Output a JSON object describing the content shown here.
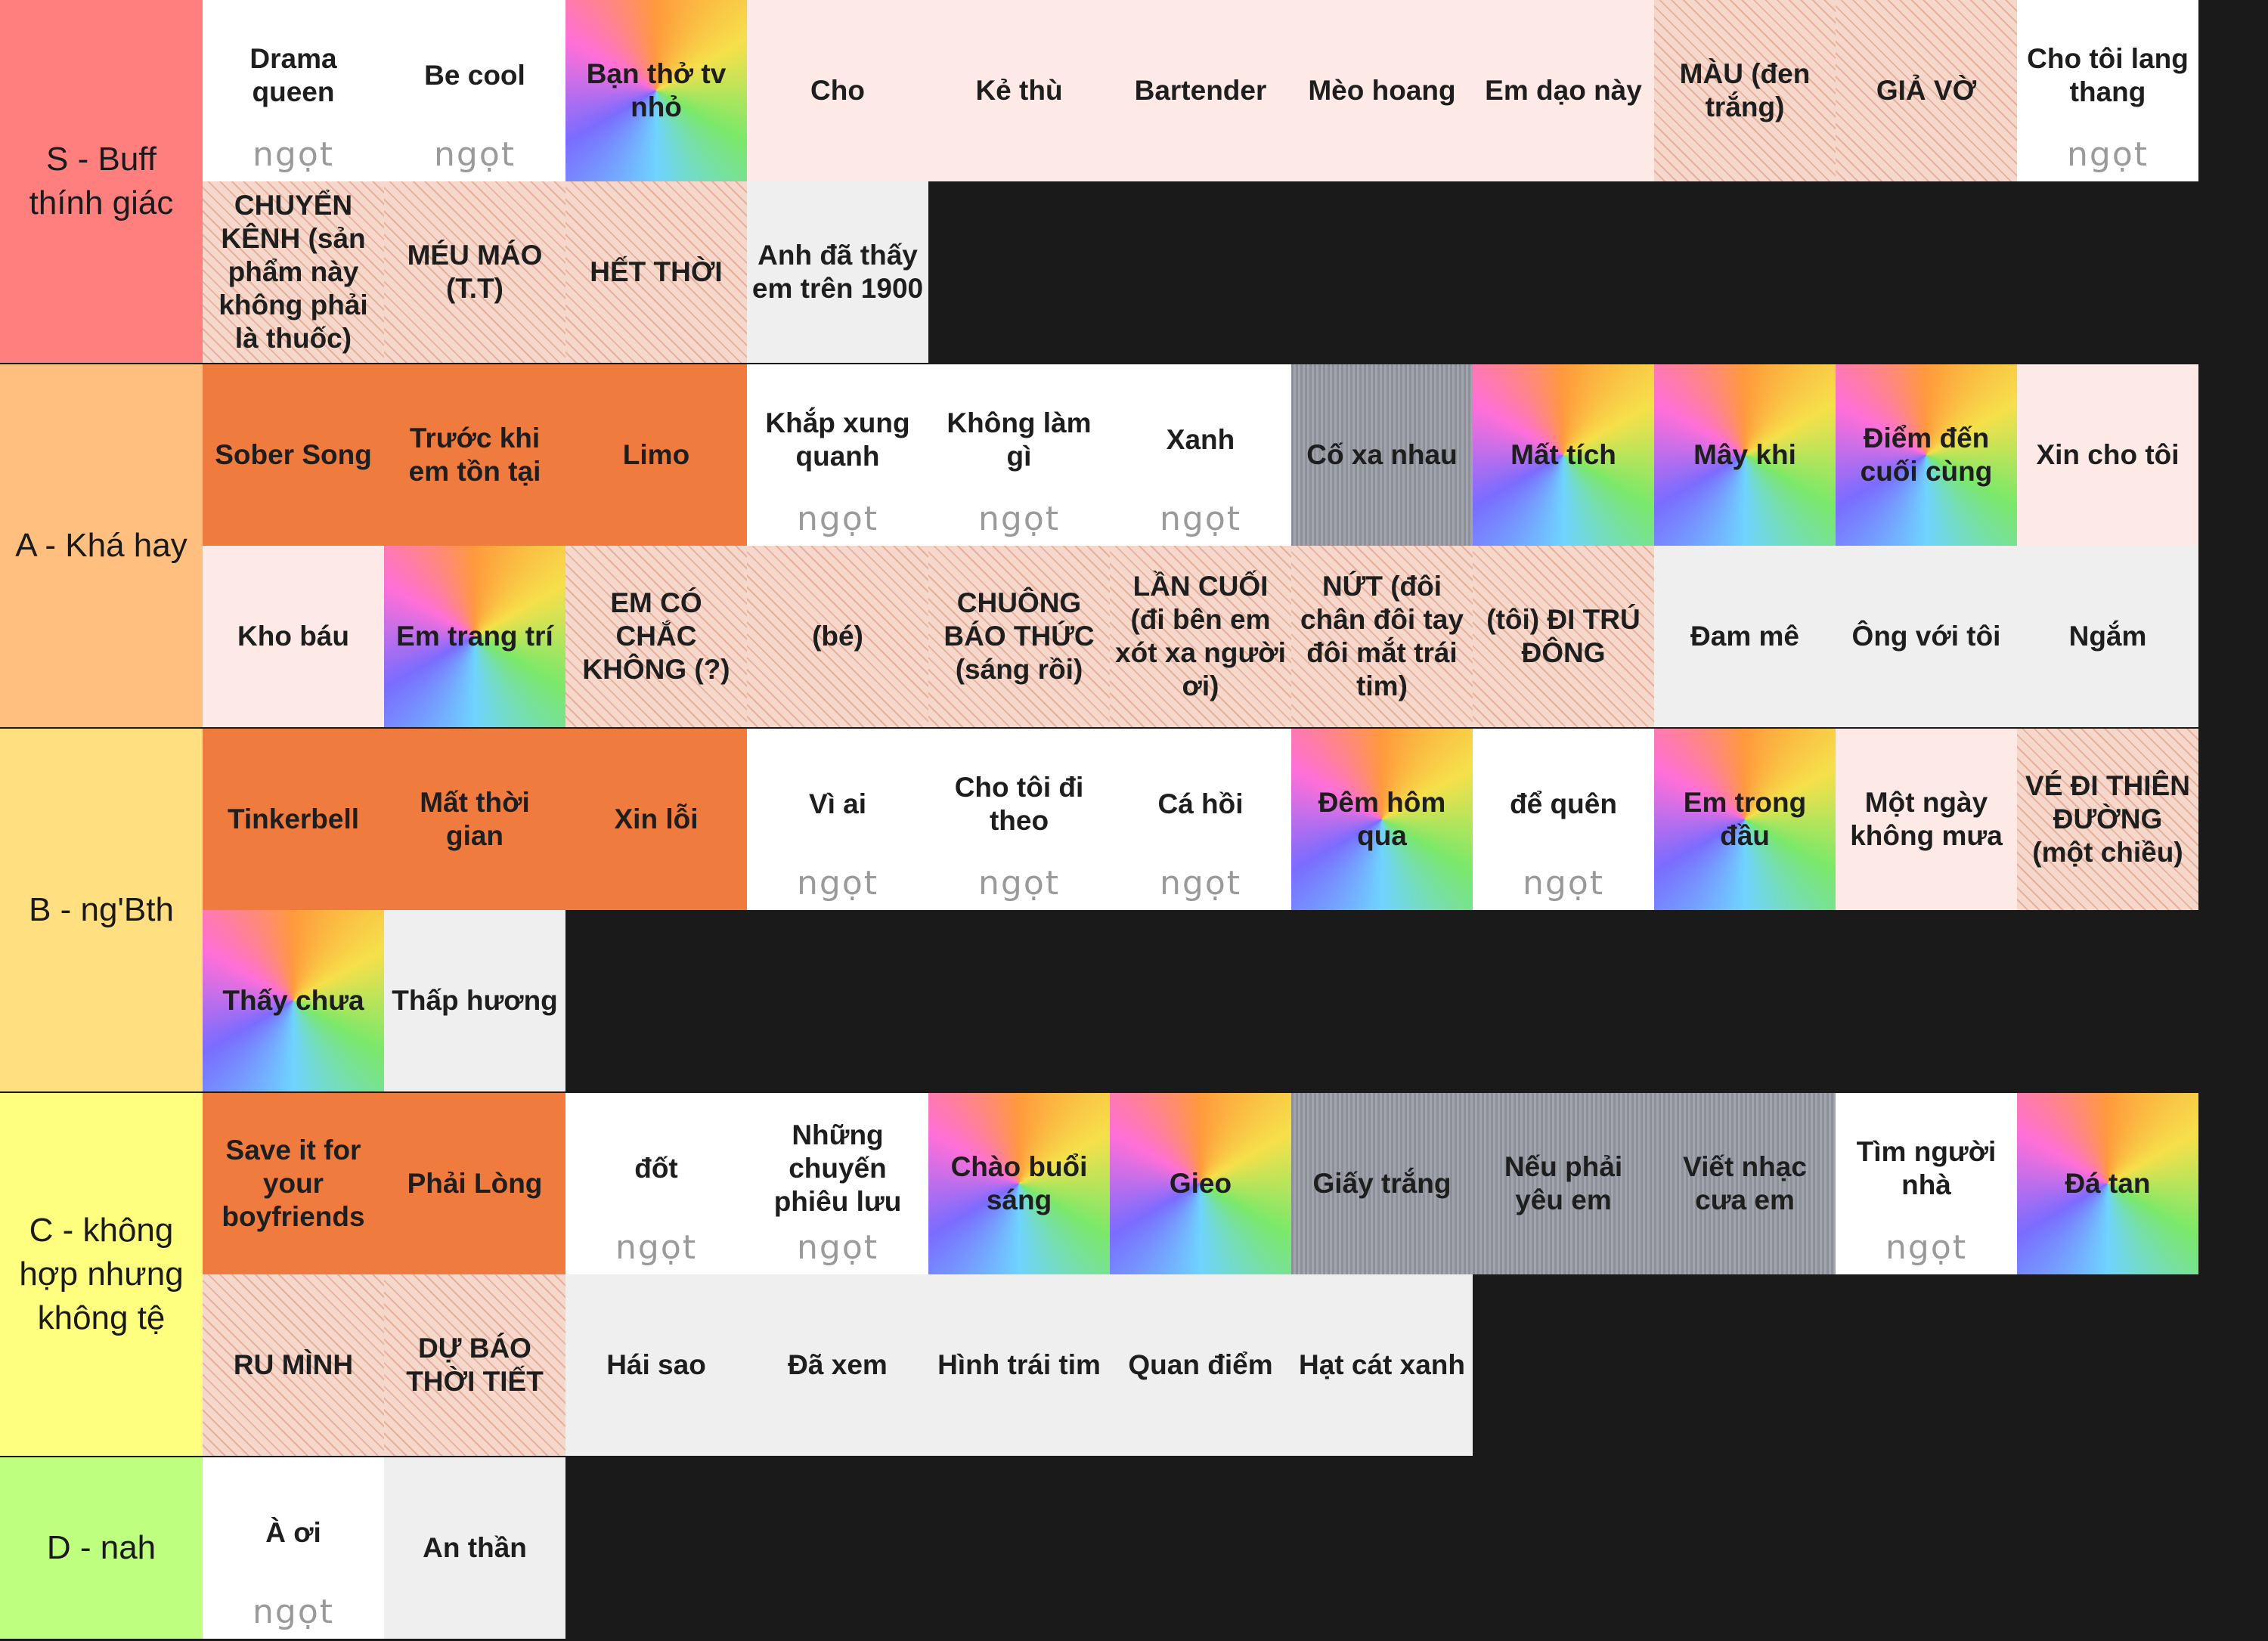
{
  "tiers": [
    {
      "label": "S - Buff thính giác",
      "color": "#ff7f7f",
      "items": [
        {
          "title": "Drama queen",
          "color": "#ffffff",
          "logo": "ngọt"
        },
        {
          "title": "Be cool",
          "color": "#ffffff",
          "logo": "ngọt"
        },
        {
          "title": "Bạn thở tv nhỏ",
          "color": "conic-gradient(from 0deg,#ff9a3c,#f6e04a,#7be86a,#6fd3ff,#7a6cff,#ff6fd8,#ff9a3c)"
        },
        {
          "title": "Cho",
          "color": "#fdeae6"
        },
        {
          "title": "Kẻ thù",
          "color": "#fdeae6"
        },
        {
          "title": "Bartender",
          "color": "#fdeae6"
        },
        {
          "title": "Mèo hoang",
          "color": "#fdeae6"
        },
        {
          "title": "Em dạo này",
          "color": "#fdeae6"
        },
        {
          "title": "MÀU (đen trắng)",
          "color": "repeating-linear-gradient(45deg,#f5d8cb 0 9px,#e6b09c 9px 11px)"
        },
        {
          "title": "GIẢ VỜ",
          "color": "repeating-linear-gradient(45deg,#f5d8cb 0 9px,#e6b09c 9px 11px)"
        },
        {
          "title": "Cho tôi lang thang",
          "color": "#ffffff",
          "logo": "ngọt"
        },
        {
          "title": "CHUYỂN KÊNH (sản phẩm này không phải là thuốc)",
          "color": "repeating-linear-gradient(45deg,#f5d8cb 0 9px,#e6b09c 9px 11px)"
        },
        {
          "title": "MÉU MÁO (T.T)",
          "color": "repeating-linear-gradient(45deg,#f5d8cb 0 9px,#e6b09c 9px 11px)"
        },
        {
          "title": "HẾT THỜI",
          "color": "repeating-linear-gradient(45deg,#f5d8cb 0 9px,#e6b09c 9px 11px)"
        },
        {
          "title": "Anh đã thấy em trên 1900",
          "color": "#efefef"
        }
      ]
    },
    {
      "label": "A - Khá hay",
      "color": "#ffbf7f",
      "items": [
        {
          "title": "Sober Song",
          "color": "#f07b3f"
        },
        {
          "title": "Trước khi em tồn tại",
          "color": "#f07b3f"
        },
        {
          "title": "Limo",
          "color": "#f07b3f"
        },
        {
          "title": "Khắp xung quanh",
          "color": "#ffffff",
          "logo": "ngọt"
        },
        {
          "title": "Không làm gì",
          "color": "#ffffff",
          "logo": "ngọt"
        },
        {
          "title": "Xanh",
          "color": "#ffffff",
          "logo": "ngọt"
        },
        {
          "title": "Cố xa nhau",
          "color": "repeating-linear-gradient(90deg,#8d8f99 0 3px,#a2a4ad 3px 6px)"
        },
        {
          "title": "Mất tích",
          "color": "conic-gradient(from 0deg,#ff9a3c,#f6e04a,#7be86a,#6fd3ff,#7a6cff,#ff6fd8,#ff9a3c)"
        },
        {
          "title": "Mây khi",
          "color": "conic-gradient(from 0deg,#ff9a3c,#f6e04a,#7be86a,#6fd3ff,#7a6cff,#ff6fd8,#ff9a3c)"
        },
        {
          "title": "Điểm đến cuối cùng",
          "color": "conic-gradient(from 0deg,#ff9a3c,#f6e04a,#7be86a,#6fd3ff,#7a6cff,#ff6fd8,#ff9a3c)"
        },
        {
          "title": "Xin cho tôi",
          "color": "#fdeae6"
        },
        {
          "title": "Kho báu",
          "color": "#fdeae6"
        },
        {
          "title": "Em trang trí",
          "color": "conic-gradient(from 0deg,#ff9a3c,#f6e04a,#7be86a,#6fd3ff,#7a6cff,#ff6fd8,#ff9a3c)"
        },
        {
          "title": "EM CÓ CHẮC KHÔNG (?)",
          "color": "repeating-linear-gradient(45deg,#f5d8cb 0 9px,#e6b09c 9px 11px)"
        },
        {
          "title": "(bé)",
          "color": "repeating-linear-gradient(45deg,#f5d8cb 0 9px,#e6b09c 9px 11px)"
        },
        {
          "title": "CHUÔNG BÁO THỨC (sáng rồi)",
          "color": "repeating-linear-gradient(45deg,#f5d8cb 0 9px,#e6b09c 9px 11px)"
        },
        {
          "title": "LẦN CUỐI (đi bên em xót xa người ơi)",
          "color": "repeating-linear-gradient(45deg,#f5d8cb 0 9px,#e6b09c 9px 11px)"
        },
        {
          "title": "NỨT (đôi chân đôi tay đôi mắt trái tim)",
          "color": "repeating-linear-gradient(45deg,#f5d8cb 0 9px,#e6b09c 9px 11px)"
        },
        {
          "title": "(tôi) ĐI TRÚ ĐÔNG",
          "color": "repeating-linear-gradient(45deg,#f5d8cb 0 9px,#e6b09c 9px 11px)"
        },
        {
          "title": "Đam mê",
          "color": "#efefef"
        },
        {
          "title": "Ông với tôi",
          "color": "#efefef"
        },
        {
          "title": "Ngắm",
          "color": "#efefef"
        }
      ]
    },
    {
      "label": "B - ng'Bth",
      "color": "#ffdf7f",
      "items": [
        {
          "title": "Tinkerbell",
          "color": "#f07b3f"
        },
        {
          "title": "Mất thời gian",
          "color": "#f07b3f"
        },
        {
          "title": "Xin lỗi",
          "color": "#f07b3f"
        },
        {
          "title": "Vì ai",
          "color": "#ffffff",
          "logo": "ngọt"
        },
        {
          "title": "Cho tôi đi theo",
          "color": "#ffffff",
          "logo": "ngọt"
        },
        {
          "title": "Cá hồi",
          "color": "#ffffff",
          "logo": "ngọt"
        },
        {
          "title": "Đêm hôm qua",
          "color": "conic-gradient(from 0deg,#ff9a3c,#f6e04a,#7be86a,#6fd3ff,#7a6cff,#ff6fd8,#ff9a3c)"
        },
        {
          "title": "để quên",
          "color": "#ffffff",
          "logo": "ngọt"
        },
        {
          "title": "Em trong đầu",
          "color": "conic-gradient(from 0deg,#ff9a3c,#f6e04a,#7be86a,#6fd3ff,#7a6cff,#ff6fd8,#ff9a3c)"
        },
        {
          "title": "Một ngày không mưa",
          "color": "#fdeae6"
        },
        {
          "title": "VÉ ĐI THIÊN ĐƯỜNG (một chiều)",
          "color": "repeating-linear-gradient(45deg,#f5d8cb 0 9px,#e6b09c 9px 11px)"
        },
        {
          "title": "Thấy chưa",
          "color": "conic-gradient(from 0deg,#ff9a3c,#f6e04a,#7be86a,#6fd3ff,#7a6cff,#ff6fd8,#ff9a3c)"
        },
        {
          "title": "Thấp hương",
          "color": "#efefef"
        }
      ]
    },
    {
      "label": "C - không hợp nhưng không tệ",
      "color": "#ffff7f",
      "items": [
        {
          "title": "Save it for your boyfriends",
          "color": "#f07b3f"
        },
        {
          "title": "Phải Lòng",
          "color": "#f07b3f"
        },
        {
          "title": "đốt",
          "color": "#ffffff",
          "logo": "ngọt"
        },
        {
          "title": "Những chuyến phiêu lưu",
          "color": "#ffffff",
          "logo": "ngọt"
        },
        {
          "title": "Chào buổi sáng",
          "color": "conic-gradient(from 0deg,#ff9a3c,#f6e04a,#7be86a,#6fd3ff,#7a6cff,#ff6fd8,#ff9a3c)"
        },
        {
          "title": "Gieo",
          "color": "conic-gradient(from 0deg,#ff9a3c,#f6e04a,#7be86a,#6fd3ff,#7a6cff,#ff6fd8,#ff9a3c)"
        },
        {
          "title": "Giấy trắng",
          "color": "repeating-linear-gradient(90deg,#8d8f99 0 3px,#a2a4ad 3px 6px)"
        },
        {
          "title": "Nếu phải yêu em",
          "color": "repeating-linear-gradient(90deg,#8d8f99 0 3px,#a2a4ad 3px 6px)"
        },
        {
          "title": "Viết nhạc cưa em",
          "color": "repeating-linear-gradient(90deg,#8d8f99 0 3px,#a2a4ad 3px 6px)"
        },
        {
          "title": "Tìm người nhà",
          "color": "#ffffff",
          "logo": "ngọt"
        },
        {
          "title": "Đá tan",
          "color": "conic-gradient(from 0deg,#ff9a3c,#f6e04a,#7be86a,#6fd3ff,#7a6cff,#ff6fd8,#ff9a3c)"
        },
        {
          "title": "RU MÌNH",
          "color": "repeating-linear-gradient(45deg,#f5d8cb 0 9px,#e6b09c 9px 11px)"
        },
        {
          "title": "DỰ BÁO THỜI TIẾT",
          "color": "repeating-linear-gradient(45deg,#f5d8cb 0 9px,#e6b09c 9px 11px)"
        },
        {
          "title": "Hái sao",
          "color": "#efefef"
        },
        {
          "title": "Đã xem",
          "color": "#efefef"
        },
        {
          "title": "Hình trái tim",
          "color": "#efefef"
        },
        {
          "title": "Quan điểm",
          "color": "#efefef"
        },
        {
          "title": "Hạt cát xanh",
          "color": "#efefef"
        }
      ]
    },
    {
      "label": "D - nah",
      "color": "#bfff7f",
      "items": [
        {
          "title": "À ơi",
          "color": "#ffffff",
          "logo": "ngọt"
        },
        {
          "title": "An thần",
          "color": "#efefef"
        }
      ]
    }
  ]
}
